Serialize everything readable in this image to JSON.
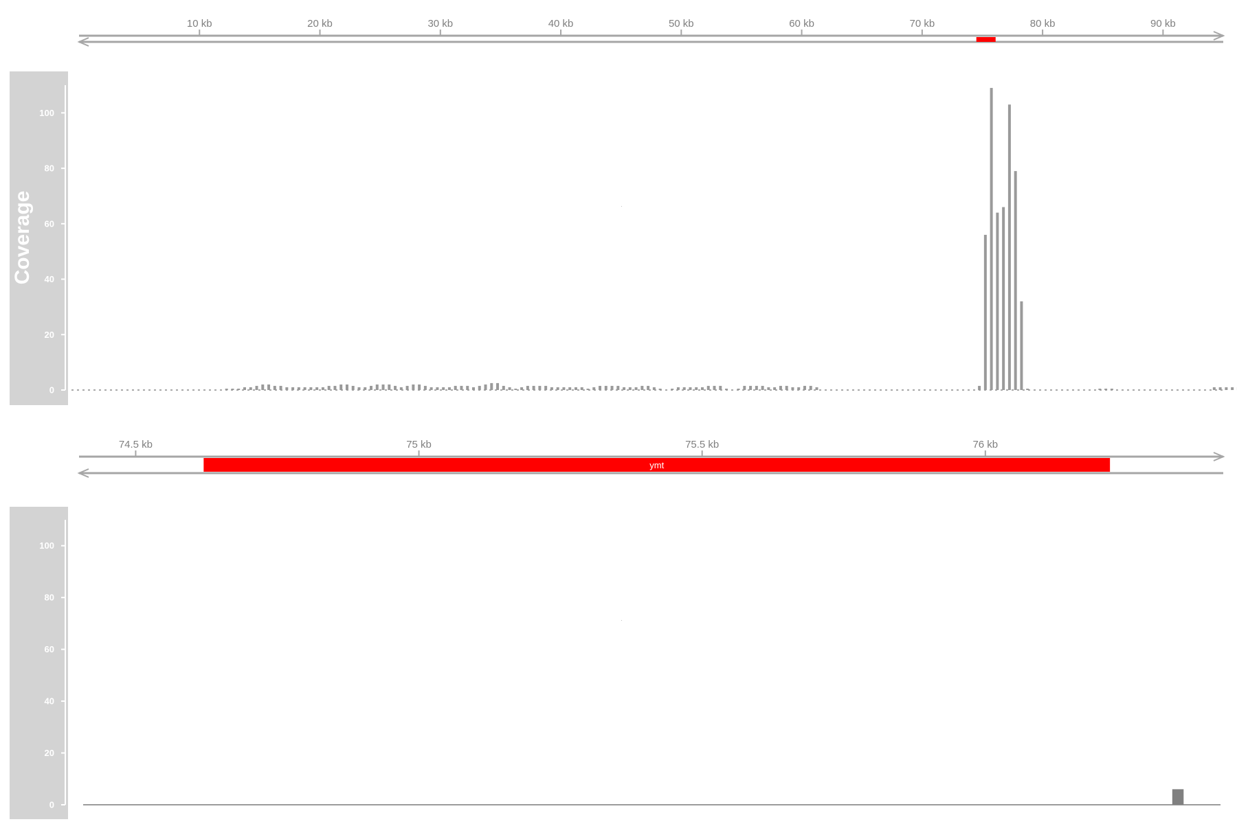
{
  "chart_data": [
    {
      "type": "genome-axis",
      "range": [
        0,
        95000
      ],
      "ticks": [
        10000,
        20000,
        30000,
        40000,
        50000,
        60000,
        70000,
        80000,
        90000
      ],
      "tick_labels": [
        "10 kb",
        "20 kb",
        "30 kb",
        "40 kb",
        "50 kb",
        "60 kb",
        "70 kb",
        "80 kb",
        "90 kb"
      ],
      "highlight": {
        "start": 74500,
        "end": 76100,
        "color": "#ff0000"
      }
    },
    {
      "type": "bar",
      "title": "Coverage",
      "xlim": [
        0,
        95000
      ],
      "ylim": [
        0,
        110
      ],
      "y_ticks": [
        0,
        20,
        40,
        60,
        80,
        100
      ],
      "y_tick_labels": [
        "0",
        "20",
        "40",
        "60",
        "80",
        "100"
      ],
      "bin_size": 500,
      "baseline_values": [
        0,
        0,
        0,
        0,
        0,
        0,
        0,
        0,
        0,
        0,
        0,
        0,
        0,
        0,
        0,
        0,
        0,
        0,
        0,
        0,
        0,
        0,
        0,
        0,
        0.5,
        0.5,
        0.5,
        1,
        1,
        1.5,
        2,
        2,
        1.5,
        1.5,
        1,
        1,
        1,
        1,
        1,
        1,
        1,
        1.5,
        1.5,
        2,
        2,
        1.5,
        1,
        1,
        1.5,
        2,
        2,
        2,
        1.5,
        1,
        1.5,
        2,
        2,
        1.5,
        1,
        1,
        1,
        1,
        1.5,
        1.5,
        1.5,
        1,
        1.5,
        2,
        2.5,
        2.5,
        1.5,
        1,
        0.5,
        1,
        1.5,
        1.5,
        1.5,
        1.5,
        1,
        1,
        1,
        1,
        1,
        1,
        0.5,
        1,
        1.5,
        1.5,
        1.5,
        1.5,
        1,
        1,
        1,
        1.5,
        1.5,
        1,
        0.5,
        0,
        0.5,
        1,
        1,
        1,
        1,
        1,
        1.5,
        1.5,
        1.5,
        0.5,
        0,
        0.5,
        1.5,
        1.5,
        1.5,
        1.5,
        1,
        1,
        1.5,
        1.5,
        1,
        1,
        1.5,
        1.5,
        1,
        0,
        0,
        0,
        0,
        0,
        0,
        0,
        0,
        0,
        0,
        0,
        0,
        0,
        0,
        0,
        0,
        0,
        0,
        0,
        0,
        0,
        0,
        0,
        0,
        0,
        0,
        0,
        0,
        0,
        0,
        0,
        0,
        0,
        0,
        0,
        0,
        0,
        0,
        0,
        0,
        0,
        0,
        0,
        0,
        0,
        0,
        0.5,
        0.5,
        0.5,
        0,
        0,
        0,
        0,
        0,
        0,
        0,
        0,
        0,
        0,
        0,
        0,
        0,
        0,
        0,
        0,
        1,
        1,
        1,
        1,
        1,
        1.5,
        1.5,
        1,
        0.5,
        1,
        1,
        1,
        1,
        1.5,
        1.5,
        1,
        0.5,
        0.5
      ],
      "peak_x": [
        74750,
        75250,
        75750,
        76250,
        76750,
        77250,
        77750,
        78250,
        78750
      ],
      "peak_values": [
        1.5,
        56,
        109,
        64,
        66,
        103,
        79,
        32,
        0.5
      ],
      "bar_color": "#9a9a9a"
    },
    {
      "type": "genome-axis",
      "range": [
        74400,
        76420
      ],
      "ticks": [
        74500,
        75000,
        75500,
        76000
      ],
      "tick_labels": [
        "74.5 kb",
        "75 kb",
        "75.5 kb",
        "76 kb"
      ],
      "gene": {
        "name": "ymt",
        "start": 74620,
        "end": 76220,
        "color": "#ff0000"
      }
    },
    {
      "type": "bar",
      "title": "",
      "xlim": [
        74400,
        76420
      ],
      "ylim": [
        0,
        110
      ],
      "y_ticks": [
        0,
        20,
        40,
        60,
        80,
        100
      ],
      "y_tick_labels": [
        "0",
        "20",
        "40",
        "60",
        "80",
        "100"
      ],
      "bars": [
        {
          "start": 76330,
          "end": 76350,
          "value": 6
        }
      ],
      "bar_color": "#808080"
    }
  ]
}
